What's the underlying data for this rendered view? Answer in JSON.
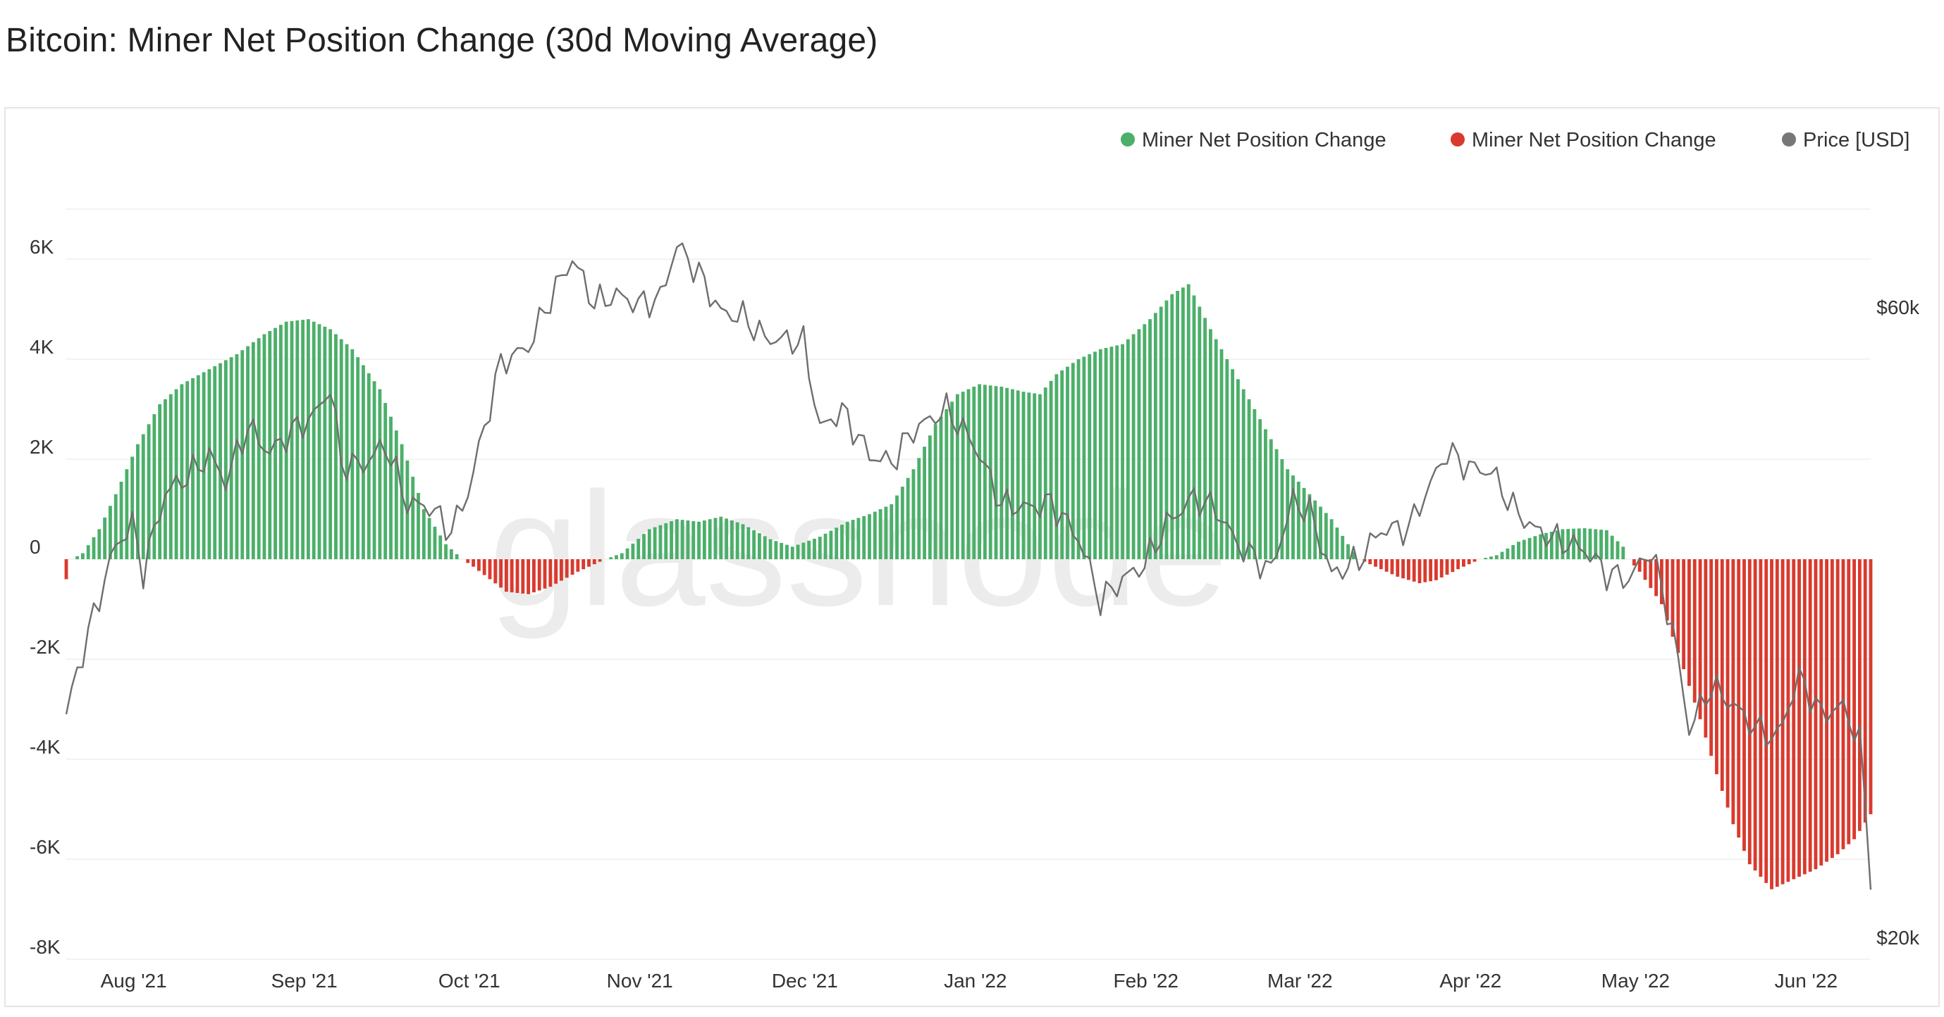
{
  "title": "Bitcoin: Miner Net Position Change (30d Moving Average)",
  "watermark": "glassnode",
  "colors": {
    "positive": "#4caf6a",
    "negative": "#d93a2e",
    "price": "#777777",
    "grid": "#efefef"
  },
  "chart_data": {
    "type": "bar",
    "legend": [
      {
        "label": "Miner Net Position Change",
        "color": "#4caf6a"
      },
      {
        "label": "Miner Net Position Change",
        "color": "#d93a2e"
      },
      {
        "label": "Price [USD]",
        "color": "#777777"
      }
    ],
    "legend_position": "top-right",
    "grid": true,
    "y_left": {
      "ticks": [
        "6K",
        "4K",
        "2K",
        "0",
        "-2K",
        "-4K",
        "-6K",
        "-8K"
      ],
      "values": [
        6000,
        4000,
        2000,
        0,
        -2000,
        -4000,
        -6000,
        -8000
      ],
      "range": [
        -8000,
        8000
      ]
    },
    "y_right": {
      "ticks": [
        "$60k",
        "$20k"
      ],
      "values": [
        60000,
        20000
      ],
      "scale": "log"
    },
    "x_ticks": [
      {
        "label": "Aug '21",
        "date": "2021-08-01"
      },
      {
        "label": "Sep '21",
        "date": "2021-09-01"
      },
      {
        "label": "Oct '21",
        "date": "2021-10-01"
      },
      {
        "label": "Nov '21",
        "date": "2021-11-01"
      },
      {
        "label": "Dec '21",
        "date": "2021-12-01"
      },
      {
        "label": "Jan '22",
        "date": "2022-01-01"
      },
      {
        "label": "Feb '22",
        "date": "2022-02-01"
      },
      {
        "label": "Mar '22",
        "date": "2022-03-01"
      },
      {
        "label": "Apr '22",
        "date": "2022-04-01"
      },
      {
        "label": "May '22",
        "date": "2022-05-01"
      },
      {
        "label": "Jun '22",
        "date": "2022-06-01"
      }
    ],
    "net_position_keypoints": [
      [
        "2021-07-20",
        -400
      ],
      [
        "2021-07-21",
        0
      ],
      [
        "2021-07-23",
        120
      ],
      [
        "2021-07-26",
        600
      ],
      [
        "2021-07-29",
        1300
      ],
      [
        "2021-08-02",
        2300
      ],
      [
        "2021-08-06",
        3100
      ],
      [
        "2021-08-10",
        3500
      ],
      [
        "2021-08-15",
        3800
      ],
      [
        "2021-08-20",
        4100
      ],
      [
        "2021-08-25",
        4500
      ],
      [
        "2021-08-29",
        4750
      ],
      [
        "2021-09-02",
        4800
      ],
      [
        "2021-09-06",
        4600
      ],
      [
        "2021-09-10",
        4200
      ],
      [
        "2021-09-15",
        3400
      ],
      [
        "2021-09-19",
        2300
      ],
      [
        "2021-09-23",
        1000
      ],
      [
        "2021-09-27",
        300
      ],
      [
        "2021-09-30",
        0
      ],
      [
        "2021-10-02",
        -150
      ],
      [
        "2021-10-08",
        -650
      ],
      [
        "2021-10-12",
        -700
      ],
      [
        "2021-10-16",
        -550
      ],
      [
        "2021-10-21",
        -250
      ],
      [
        "2021-10-26",
        0
      ],
      [
        "2021-10-29",
        120
      ],
      [
        "2021-11-03",
        600
      ],
      [
        "2021-11-08",
        800
      ],
      [
        "2021-11-12",
        750
      ],
      [
        "2021-11-16",
        850
      ],
      [
        "2021-11-20",
        700
      ],
      [
        "2021-11-25",
        400
      ],
      [
        "2021-11-29",
        250
      ],
      [
        "2021-12-04",
        450
      ],
      [
        "2021-12-09",
        750
      ],
      [
        "2021-12-13",
        900
      ],
      [
        "2021-12-17",
        1100
      ],
      [
        "2021-12-21",
        1800
      ],
      [
        "2021-12-25",
        2700
      ],
      [
        "2021-12-29",
        3300
      ],
      [
        "2022-01-02",
        3500
      ],
      [
        "2022-01-06",
        3450
      ],
      [
        "2022-01-10",
        3350
      ],
      [
        "2022-01-13",
        3300
      ],
      [
        "2022-01-16",
        3700
      ],
      [
        "2022-01-20",
        4000
      ],
      [
        "2022-01-24",
        4200
      ],
      [
        "2022-01-28",
        4300
      ],
      [
        "2022-02-02",
        4800
      ],
      [
        "2022-02-06",
        5300
      ],
      [
        "2022-02-09",
        5500
      ],
      [
        "2022-02-13",
        4600
      ],
      [
        "2022-02-17",
        3800
      ],
      [
        "2022-02-22",
        2800
      ],
      [
        "2022-02-27",
        1800
      ],
      [
        "2022-03-03",
        1300
      ],
      [
        "2022-03-07",
        800
      ],
      [
        "2022-03-10",
        300
      ],
      [
        "2022-03-12",
        0
      ],
      [
        "2022-03-14",
        -100
      ],
      [
        "2022-03-19",
        -350
      ],
      [
        "2022-03-23",
        -480
      ],
      [
        "2022-03-26",
        -420
      ],
      [
        "2022-03-30",
        -200
      ],
      [
        "2022-04-03",
        0
      ],
      [
        "2022-04-06",
        80
      ],
      [
        "2022-04-10",
        350
      ],
      [
        "2022-04-14",
        500
      ],
      [
        "2022-04-18",
        600
      ],
      [
        "2022-04-22",
        620
      ],
      [
        "2022-04-26",
        580
      ],
      [
        "2022-04-29",
        250
      ],
      [
        "2022-04-30",
        0
      ],
      [
        "2022-05-02",
        -250
      ],
      [
        "2022-05-06",
        -900
      ],
      [
        "2022-05-10",
        -2200
      ],
      [
        "2022-05-13",
        -3200
      ],
      [
        "2022-05-16",
        -4300
      ],
      [
        "2022-05-19",
        -5300
      ],
      [
        "2022-05-22",
        -6100
      ],
      [
        "2022-05-26",
        -6600
      ],
      [
        "2022-05-30",
        -6400
      ],
      [
        "2022-06-03",
        -6200
      ],
      [
        "2022-06-07",
        -5900
      ],
      [
        "2022-06-10",
        -5600
      ],
      [
        "2022-06-13",
        -5100
      ]
    ],
    "price_keypoints": [
      [
        "2021-07-20",
        29800
      ],
      [
        "2021-07-22",
        32100
      ],
      [
        "2021-07-25",
        35400
      ],
      [
        "2021-07-29",
        40000
      ],
      [
        "2021-08-01",
        41500
      ],
      [
        "2021-08-03",
        38200
      ],
      [
        "2021-08-07",
        43800
      ],
      [
        "2021-08-12",
        45500
      ],
      [
        "2021-08-15",
        46800
      ],
      [
        "2021-08-18",
        44700
      ],
      [
        "2021-08-22",
        49200
      ],
      [
        "2021-08-26",
        47000
      ],
      [
        "2021-08-30",
        48800
      ],
      [
        "2021-09-03",
        50100
      ],
      [
        "2021-09-06",
        52700
      ],
      [
        "2021-09-08",
        46100
      ],
      [
        "2021-09-12",
        46000
      ],
      [
        "2021-09-16",
        47700
      ],
      [
        "2021-09-20",
        43000
      ],
      [
        "2021-09-24",
        42800
      ],
      [
        "2021-09-28",
        41000
      ],
      [
        "2021-10-01",
        43800
      ],
      [
        "2021-10-04",
        49100
      ],
      [
        "2021-10-07",
        55000
      ],
      [
        "2021-10-12",
        56500
      ],
      [
        "2021-10-16",
        61500
      ],
      [
        "2021-10-20",
        65900
      ],
      [
        "2021-10-24",
        61000
      ],
      [
        "2021-10-28",
        61900
      ],
      [
        "2021-11-01",
        60900
      ],
      [
        "2021-11-05",
        61500
      ],
      [
        "2021-11-08",
        67500
      ],
      [
        "2021-11-12",
        64200
      ],
      [
        "2021-11-16",
        60000
      ],
      [
        "2021-11-20",
        59600
      ],
      [
        "2021-11-24",
        57400
      ],
      [
        "2021-11-28",
        57200
      ],
      [
        "2021-12-01",
        57000
      ],
      [
        "2021-12-04",
        49000
      ],
      [
        "2021-12-08",
        50600
      ],
      [
        "2021-12-13",
        46800
      ],
      [
        "2021-12-17",
        46200
      ],
      [
        "2021-12-21",
        48900
      ],
      [
        "2021-12-27",
        50700
      ],
      [
        "2022-01-01",
        47700
      ],
      [
        "2022-01-06",
        43000
      ],
      [
        "2022-01-11",
        42700
      ],
      [
        "2022-01-15",
        43100
      ],
      [
        "2022-01-20",
        40500
      ],
      [
        "2022-01-24",
        36300
      ],
      [
        "2022-01-28",
        37700
      ],
      [
        "2022-02-01",
        38700
      ],
      [
        "2022-02-05",
        41500
      ],
      [
        "2022-02-10",
        43500
      ],
      [
        "2022-02-14",
        42600
      ],
      [
        "2022-02-18",
        40000
      ],
      [
        "2022-02-24",
        38300
      ],
      [
        "2022-02-28",
        43200
      ],
      [
        "2022-03-03",
        42400
      ],
      [
        "2022-03-07",
        38000
      ],
      [
        "2022-03-12",
        39000
      ],
      [
        "2022-03-16",
        41100
      ],
      [
        "2022-03-21",
        41200
      ],
      [
        "2022-03-25",
        44500
      ],
      [
        "2022-03-28",
        47100
      ],
      [
        "2022-04-01",
        45800
      ],
      [
        "2022-04-05",
        45500
      ],
      [
        "2022-04-09",
        42700
      ],
      [
        "2022-04-13",
        41100
      ],
      [
        "2022-04-17",
        40400
      ],
      [
        "2022-04-22",
        39700
      ],
      [
        "2022-04-26",
        38100
      ],
      [
        "2022-04-30",
        37700
      ],
      [
        "2022-05-04",
        39700
      ],
      [
        "2022-05-08",
        34500
      ],
      [
        "2022-05-11",
        29000
      ],
      [
        "2022-05-15",
        31300
      ],
      [
        "2022-05-19",
        30300
      ],
      [
        "2022-05-23",
        29100
      ],
      [
        "2022-05-27",
        28600
      ],
      [
        "2022-05-31",
        31800
      ],
      [
        "2022-06-04",
        29800
      ],
      [
        "2022-06-08",
        30200
      ],
      [
        "2022-06-11",
        28400
      ],
      [
        "2022-06-13",
        22500
      ]
    ]
  }
}
